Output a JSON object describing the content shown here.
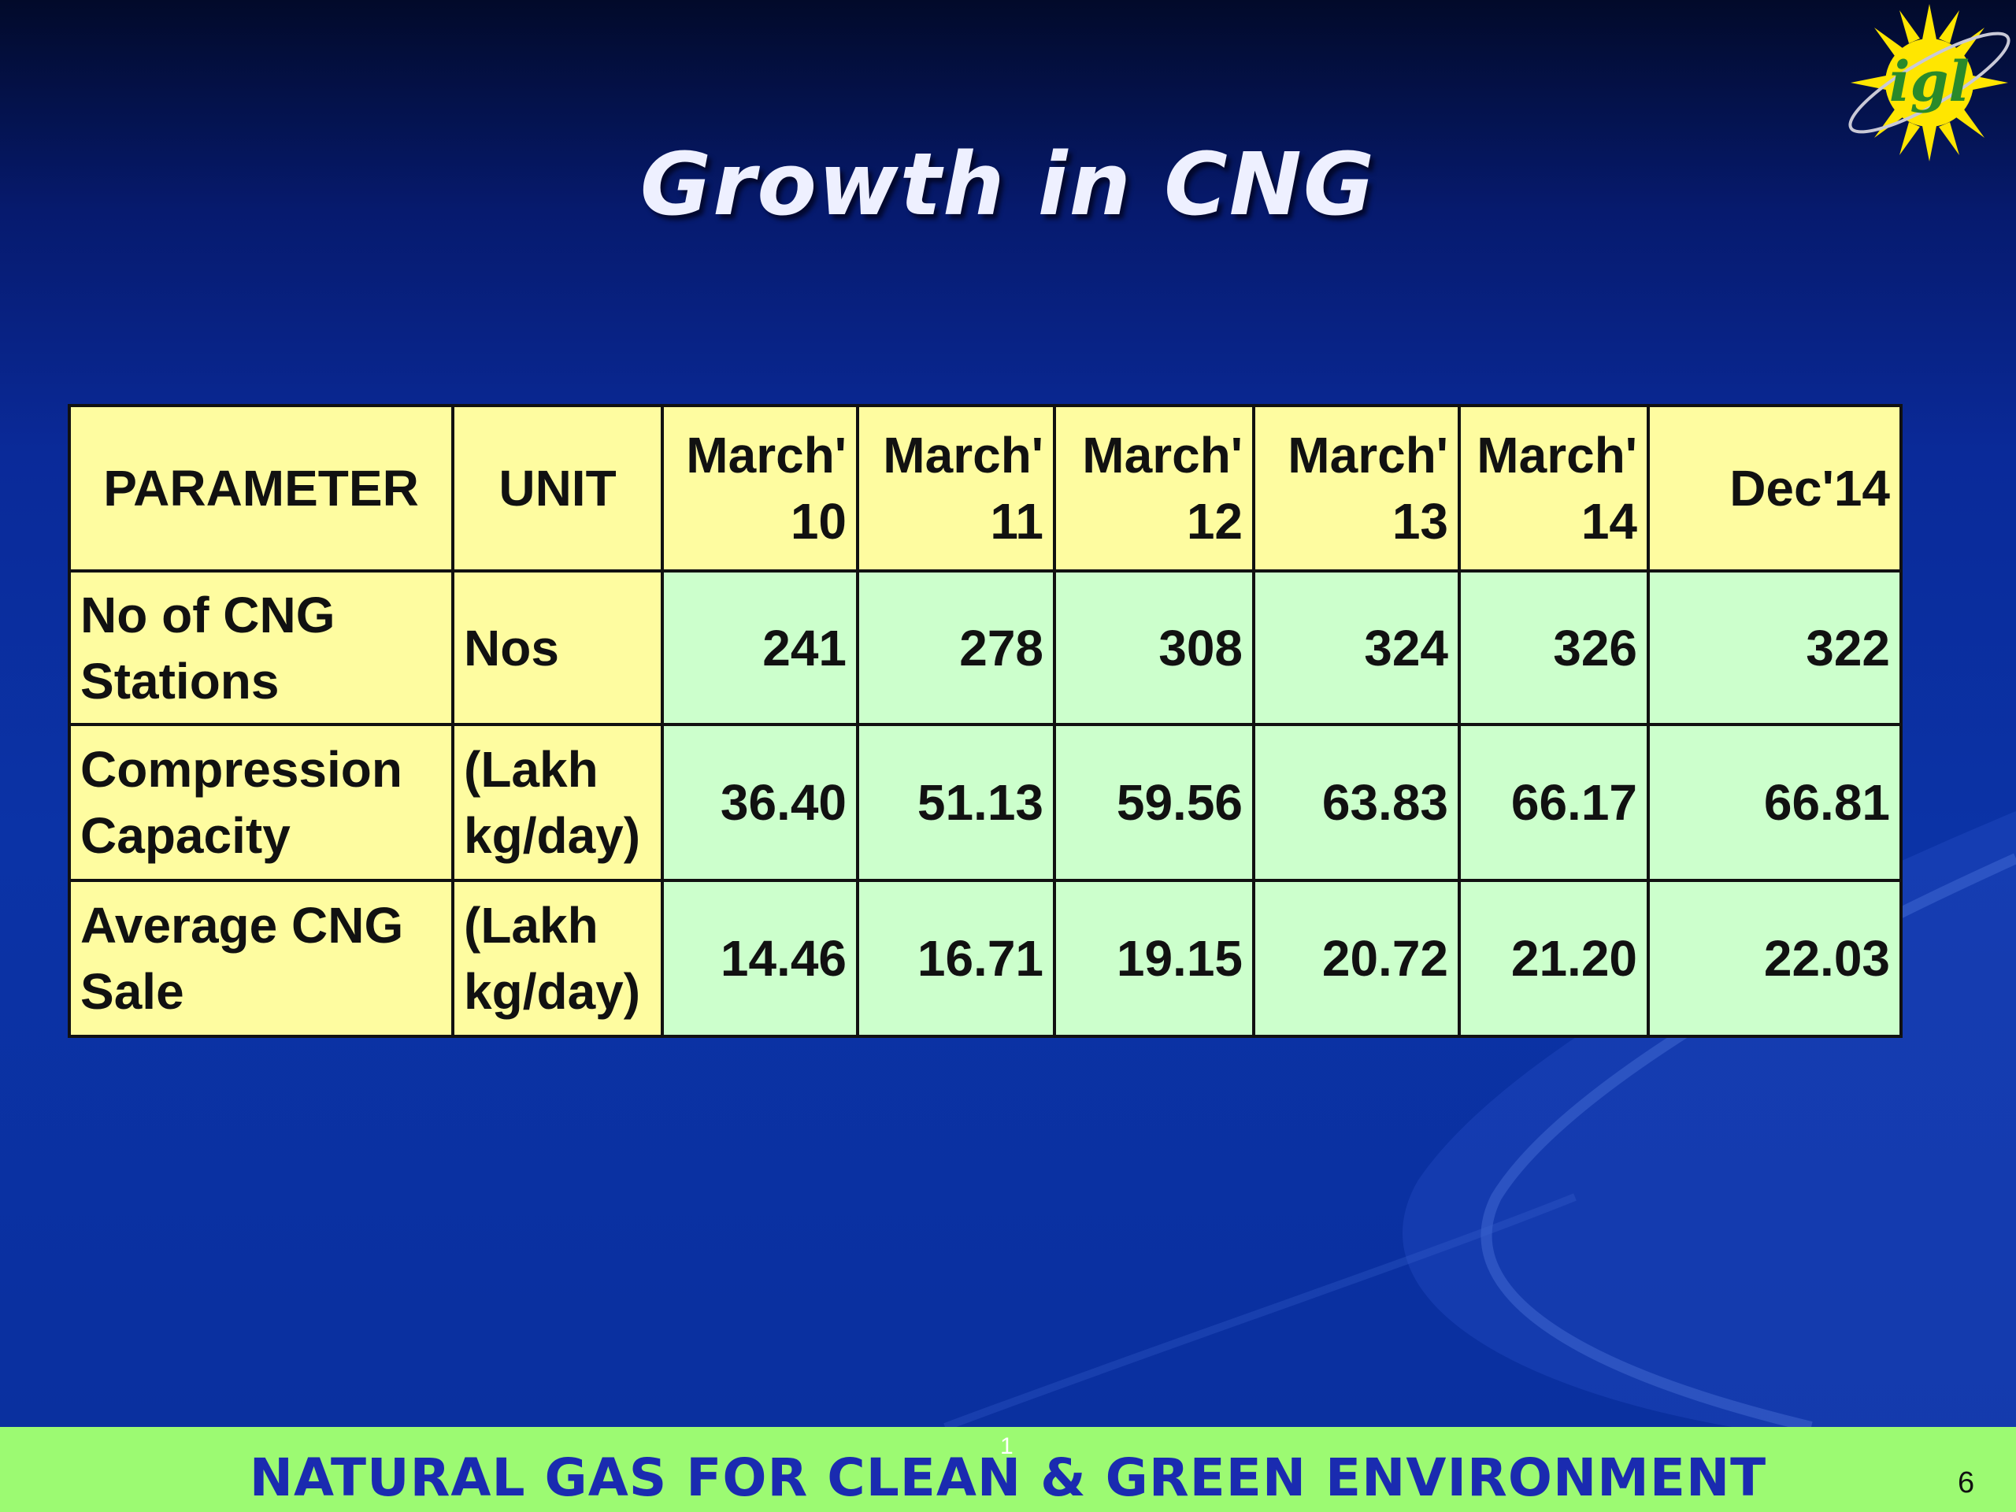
{
  "slide": {
    "title": "Growth in CNG",
    "logo_text": "igl",
    "footer_text": "NATURAL GAS FOR CLEAN & GREEN ENVIRONMENT",
    "footer_small": "1",
    "page_number": "6"
  },
  "table": {
    "headers": {
      "parameter": "PARAMETER",
      "unit": "UNIT",
      "periods": [
        {
          "line1": "March'",
          "line2": "10"
        },
        {
          "line1": "March'",
          "line2": "11"
        },
        {
          "line1": "March'",
          "line2": "12"
        },
        {
          "line1": "March'",
          "line2": "13"
        },
        {
          "line1": "March'",
          "line2": "14"
        },
        {
          "line1": "Dec'14",
          "line2": ""
        }
      ]
    },
    "rows": [
      {
        "param_line1": "No of CNG",
        "param_line2": "Stations",
        "unit_line1": "Nos",
        "unit_line2": "",
        "values": [
          "241",
          "278",
          "308",
          "324",
          "326",
          "322"
        ]
      },
      {
        "param_line1": "Compression",
        "param_line2": "Capacity",
        "unit_line1": "(Lakh",
        "unit_line2": "kg/day)",
        "values": [
          "36.40",
          "51.13",
          "59.56",
          "63.83",
          "66.17",
          "66.81"
        ]
      },
      {
        "param_line1": "Average CNG",
        "param_line2": "Sale",
        "unit_line1": "(Lakh",
        "unit_line2": "kg/day)",
        "values": [
          "14.46",
          "16.71",
          "19.15",
          "20.72",
          "21.20",
          "22.03"
        ]
      }
    ]
  },
  "colors": {
    "header_bg": "#fefca0",
    "value_bg": "#ccffcc",
    "footer_bg": "#9cfa72",
    "footer_text": "#1a2bb0",
    "logo_sun": "#ffe600",
    "logo_text": "#2a8a2a"
  }
}
